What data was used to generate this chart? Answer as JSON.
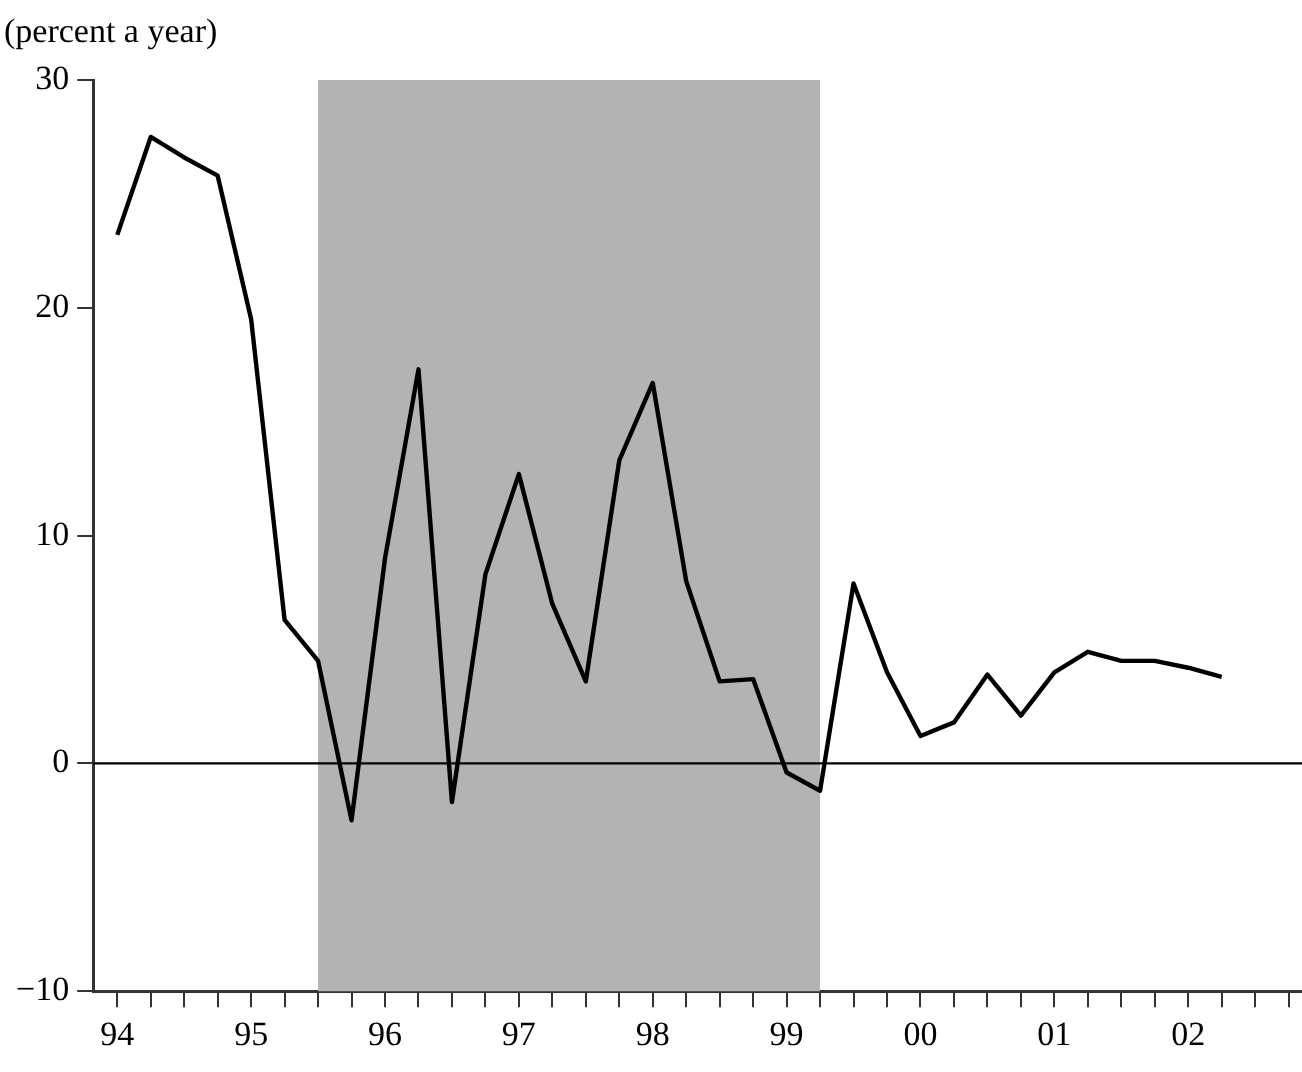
{
  "chart_data": {
    "type": "line",
    "ylabel": "(percent a year)",
    "x": [
      1994,
      1994.25,
      1994.5,
      1994.75,
      1995,
      1995.25,
      1995.5,
      1995.75,
      1996,
      1996.25,
      1996.5,
      1996.75,
      1997,
      1997.25,
      1997.5,
      1997.75,
      1998,
      1998.25,
      1998.5,
      1998.75,
      1999,
      1999.25,
      1999.5,
      1999.75,
      2000,
      2000.25,
      2000.5,
      2000.75,
      2001,
      2001.25,
      2001.5,
      2001.75,
      2002,
      2002.25
    ],
    "series": [
      {
        "color": "#000000",
        "values": [
          23.2,
          27.5,
          26.6,
          25.8,
          19.5,
          6.3,
          4.5,
          -2.5,
          9.0,
          17.3,
          -1.7,
          8.3,
          12.7,
          7.0,
          3.6,
          13.3,
          16.7,
          8.0,
          3.6,
          3.7,
          -0.4,
          -1.2,
          7.9,
          4.0,
          1.2,
          1.8,
          3.9,
          2.1,
          4.0,
          4.9,
          4.5,
          4.5,
          4.2,
          3.8
        ]
      }
    ],
    "xlim": [
      1993.82,
      2002.85
    ],
    "ylim": [
      -10,
      30
    ],
    "xticks": [
      {
        "value": 1994,
        "label": "94"
      },
      {
        "value": 1994.25,
        "label": null
      },
      {
        "value": 1994.5,
        "label": null
      },
      {
        "value": 1994.75,
        "label": null
      },
      {
        "value": 1995,
        "label": "95"
      },
      {
        "value": 1995.25,
        "label": null
      },
      {
        "value": 1995.5,
        "label": null
      },
      {
        "value": 1995.75,
        "label": null
      },
      {
        "value": 1996,
        "label": "96"
      },
      {
        "value": 1996.25,
        "label": null
      },
      {
        "value": 1996.5,
        "label": null
      },
      {
        "value": 1996.75,
        "label": null
      },
      {
        "value": 1997,
        "label": "97"
      },
      {
        "value": 1997.25,
        "label": null
      },
      {
        "value": 1997.5,
        "label": null
      },
      {
        "value": 1997.75,
        "label": null
      },
      {
        "value": 1998,
        "label": "98"
      },
      {
        "value": 1998.25,
        "label": null
      },
      {
        "value": 1998.5,
        "label": null
      },
      {
        "value": 1998.75,
        "label": null
      },
      {
        "value": 1999,
        "label": "99"
      },
      {
        "value": 1999.25,
        "label": null
      },
      {
        "value": 1999.5,
        "label": null
      },
      {
        "value": 1999.75,
        "label": null
      },
      {
        "value": 2000,
        "label": "00"
      },
      {
        "value": 2000.25,
        "label": null
      },
      {
        "value": 2000.5,
        "label": null
      },
      {
        "value": 2000.75,
        "label": null
      },
      {
        "value": 2001,
        "label": "01"
      },
      {
        "value": 2001.25,
        "label": null
      },
      {
        "value": 2001.5,
        "label": null
      },
      {
        "value": 2001.75,
        "label": null
      },
      {
        "value": 2002,
        "label": "02"
      },
      {
        "value": 2002.25,
        "label": null
      },
      {
        "value": 2002.5,
        "label": null
      },
      {
        "value": 2002.75,
        "label": null
      }
    ],
    "yticks": [
      {
        "value": -10,
        "label": "−10"
      },
      0,
      10,
      20,
      30
    ],
    "bands": [
      {
        "axis": "x",
        "from": 1995.5,
        "to": 1999.25,
        "color": "#b3b3b3"
      }
    ],
    "ref_lines": [
      {
        "axis": "y",
        "value": 0,
        "color": "#000000"
      }
    ],
    "grid": false,
    "legend": false,
    "marker": "none",
    "line_style": "solid"
  }
}
